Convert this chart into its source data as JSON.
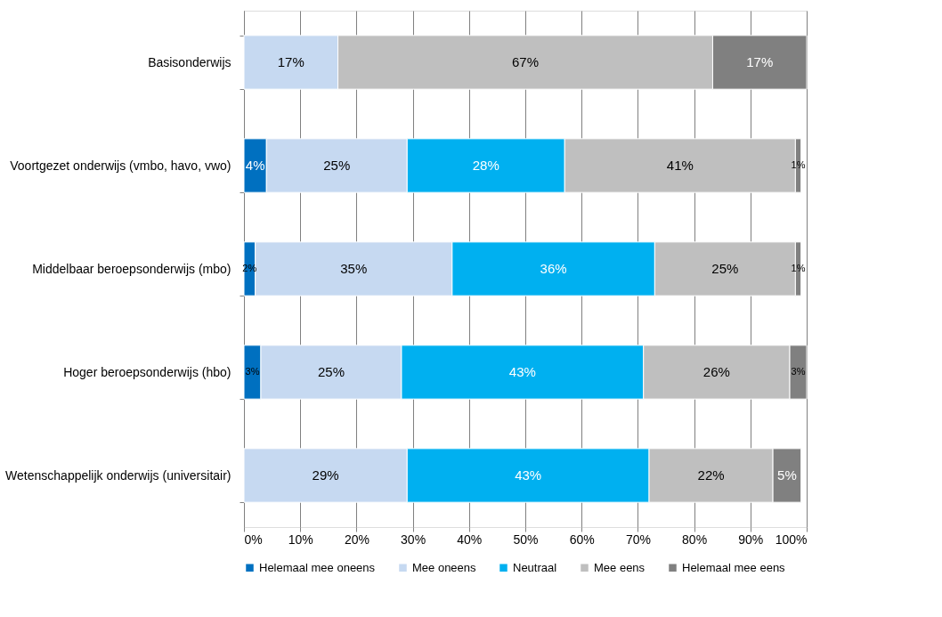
{
  "chart_data": {
    "type": "bar",
    "orientation": "horizontal",
    "stacked": true,
    "categories": [
      "Basisonderwijs",
      "Voortgezet onderwijs (vmbo, havo, vwo)",
      "Middelbaar beroepsonderwijs (mbo)",
      "Hoger beroepsonderwijs (hbo)",
      "Wetenschappelijk onderwijs (universitair)"
    ],
    "series": [
      {
        "name": "Helemaal mee oneens",
        "color": "#0070c0",
        "values": [
          null,
          4,
          2,
          3,
          null
        ],
        "value_labels": [
          null,
          "4%",
          "2%",
          "3%",
          null
        ]
      },
      {
        "name": "Mee oneens",
        "color": "#c6d9f1",
        "values": [
          16.7,
          25,
          35,
          25,
          29
        ],
        "value_labels": [
          "17%",
          "25%",
          "35%",
          "25%",
          "29%"
        ]
      },
      {
        "name": "Neutraal",
        "color": "#00b0f0",
        "values": [
          null,
          28,
          36,
          43,
          43
        ],
        "value_labels": [
          null,
          "28%",
          "36%",
          "43%",
          "43%"
        ]
      },
      {
        "name": "Mee eens",
        "color": "#bfbfbf",
        "values": [
          66.6,
          41,
          25,
          26,
          22
        ],
        "value_labels": [
          "67%",
          "41%",
          "25%",
          "26%",
          "22%"
        ]
      },
      {
        "name": "Helemaal mee eens",
        "color": "#808080",
        "values": [
          16.7,
          1,
          1,
          3,
          5
        ],
        "value_labels": [
          "17%",
          "1%",
          "1%",
          "3%",
          "5%"
        ]
      }
    ],
    "xlim": [
      0,
      100
    ],
    "xticks": [
      {
        "value": 0,
        "label": "0%"
      },
      {
        "value": 10,
        "label": "10%"
      },
      {
        "value": 20,
        "label": "20%"
      },
      {
        "value": 30,
        "label": "30%"
      },
      {
        "value": 40,
        "label": "40%"
      },
      {
        "value": 50,
        "label": "50%"
      },
      {
        "value": 60,
        "label": "60%"
      },
      {
        "value": 70,
        "label": "70%"
      },
      {
        "value": 80,
        "label": "80%"
      },
      {
        "value": 90,
        "label": "90%"
      },
      {
        "value": 100,
        "label": "100%"
      }
    ],
    "grid": "x",
    "legend": "bottom"
  }
}
